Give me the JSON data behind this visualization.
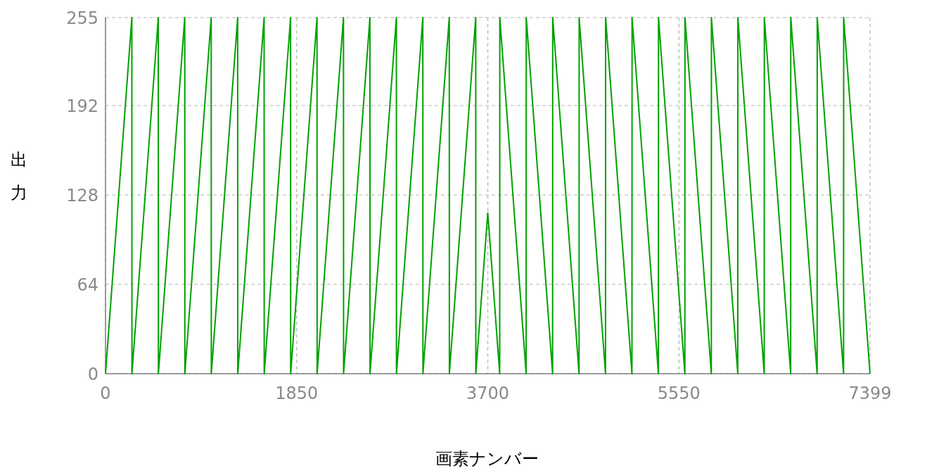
{
  "chart_data": {
    "type": "line",
    "xlabel": "画素ナンバー",
    "ylabel": "出力",
    "xlim": [
      0,
      7399
    ],
    "ylim": [
      0,
      255
    ],
    "xticks": [
      0,
      1850,
      3700,
      5550,
      7399
    ],
    "yticks": [
      0,
      64,
      128,
      192,
      255
    ],
    "grid": true,
    "series": [
      {
        "color": "#00a000",
        "x": [
          0,
          255,
          256,
          511,
          512,
          767,
          768,
          1023,
          1024,
          1279,
          1280,
          1535,
          1536,
          1791,
          1792,
          2047,
          2048,
          2303,
          2304,
          2559,
          2560,
          2815,
          2816,
          3071,
          3072,
          3327,
          3328,
          3583,
          3584,
          3699,
          3700,
          3815,
          3816,
          4071,
          4072,
          4327,
          4328,
          4583,
          4584,
          4839,
          4840,
          5095,
          5096,
          5351,
          5352,
          5607,
          5608,
          5863,
          5864,
          6119,
          6120,
          6375,
          6376,
          6631,
          6632,
          6887,
          6888,
          7143,
          7144,
          7399
        ],
        "values": [
          0,
          255,
          0,
          255,
          0,
          255,
          0,
          255,
          0,
          255,
          0,
          255,
          0,
          255,
          0,
          255,
          0,
          255,
          0,
          255,
          0,
          255,
          0,
          255,
          0,
          255,
          0,
          255,
          0,
          115,
          115,
          0,
          255,
          0,
          255,
          0,
          255,
          0,
          255,
          0,
          255,
          0,
          255,
          0,
          255,
          0,
          255,
          0,
          255,
          0,
          255,
          0,
          255,
          0,
          255,
          0,
          255,
          0,
          255,
          0
        ]
      }
    ]
  }
}
